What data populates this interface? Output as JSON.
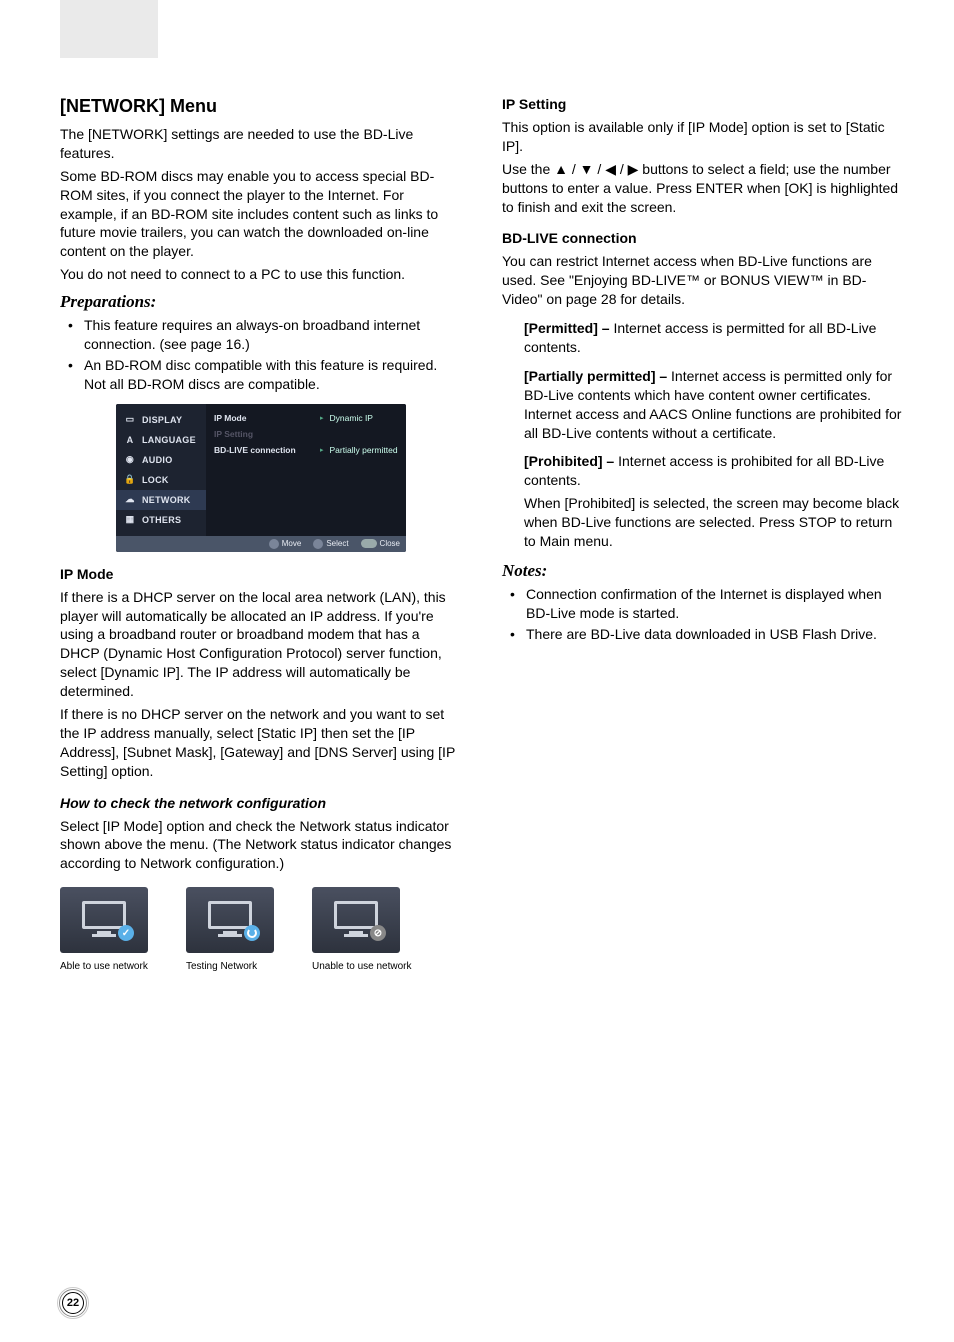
{
  "page_number": "22",
  "left": {
    "h2": "[NETWORK] Menu",
    "intro1": "The [NETWORK] settings are needed to use the BD-Live features.",
    "intro2": "Some BD-ROM discs may enable you to access special BD-ROM sites, if you connect the player to the Internet. For example, if an BD-ROM site includes content such as links to future movie trailers, you can watch the downloaded on-line content on the player.",
    "intro3": "You do not need to connect to a PC to use this function.",
    "prep_heading": "Preparations:",
    "prep_items": [
      "This feature requires an always-on broadband internet connection. (see page 16.)",
      "An BD-ROM disc compatible with this feature is required. Not all BD-ROM discs are compatible."
    ],
    "menu": {
      "sidebar": [
        {
          "icon": "display-icon",
          "glyph": "▭",
          "label": "DISPLAY"
        },
        {
          "icon": "language-icon",
          "glyph": "A",
          "label": "LANGUAGE"
        },
        {
          "icon": "audio-icon",
          "glyph": "◉",
          "label": "AUDIO"
        },
        {
          "icon": "lock-icon",
          "glyph": "🔒",
          "label": "LOCK"
        },
        {
          "icon": "network-icon",
          "glyph": "☁",
          "label": "NETWORK"
        },
        {
          "icon": "others-icon",
          "glyph": "▦",
          "label": "OTHERS"
        }
      ],
      "rows": [
        {
          "label": "IP Mode",
          "value": "Dynamic IP",
          "dim": false
        },
        {
          "label": "IP Setting",
          "value": "",
          "dim": true
        },
        {
          "label": "BD-LIVE connection",
          "value": "Partially permitted",
          "dim": false
        }
      ],
      "footer": {
        "move": "Move",
        "select": "Select",
        "close": "Close"
      }
    },
    "ipmode_heading": "IP Mode",
    "ipmode_p1": "If there is a DHCP server on the local area network (LAN), this player will automatically be allocated an IP address. If you're using a broadband router or broadband modem that has a DHCP (Dynamic Host Configuration Protocol) server function, select [Dynamic IP]. The IP address will automatically be determined.",
    "ipmode_p2": "If there is no DHCP server on the network and you want to set the IP address manually, select [Static IP] then set the [IP Address], [Subnet Mask], [Gateway] and [DNS Server] using [IP Setting] option.",
    "howto_heading": "How to check the network configuration",
    "howto_p": "Select [IP Mode] option and check the Network status indicator shown above the menu. (The Network status indicator changes according to Network configuration.)",
    "net_status": [
      {
        "caption": "Able to use network",
        "type": "ok",
        "glyph": "✓"
      },
      {
        "caption": "Testing Network",
        "type": "spin",
        "glyph": ""
      },
      {
        "caption": "Unable to use network",
        "type": "no",
        "glyph": "⊘"
      }
    ]
  },
  "right": {
    "ipsetting_heading": "IP Setting",
    "ipsetting_p1": "This option is available only if [IP Mode] option is set to [Static IP].",
    "ipsetting_p2": "Use the ▲ / ▼ / ◀ / ▶ buttons to select a field; use the number buttons to enter a value. Press ENTER when [OK] is highlighted to finish and exit the screen.",
    "bdlive_heading": "BD-LIVE connection",
    "bdlive_p": "You can restrict Internet access when BD-Live functions are used. See \"Enjoying BD-LIVE™ or BONUS VIEW™ in BD-Video\" on page 28 for details.",
    "permitted_label": "[Permitted] – ",
    "permitted_text": "Internet access is permitted for all BD-Live contents.",
    "partial_label": "[Partially permitted] – ",
    "partial_text": "Internet access is permitted only for BD-Live contents which have content owner certificates. Internet access and AACS Online functions are prohibited for all BD-Live contents without a certificate.",
    "prohibited_label": "[Prohibited] – ",
    "prohibited_text": "Internet access is prohibited for all BD-Live contents.",
    "prohibited_extra": "When [Prohibited] is selected, the screen may become black when BD-Live functions are selected. Press STOP to return to Main menu.",
    "notes_heading": "Notes:",
    "notes": [
      "Connection confirmation of the Internet is displayed when BD-Live mode is started.",
      "There are BD-Live data downloaded in USB Flash Drive."
    ]
  }
}
